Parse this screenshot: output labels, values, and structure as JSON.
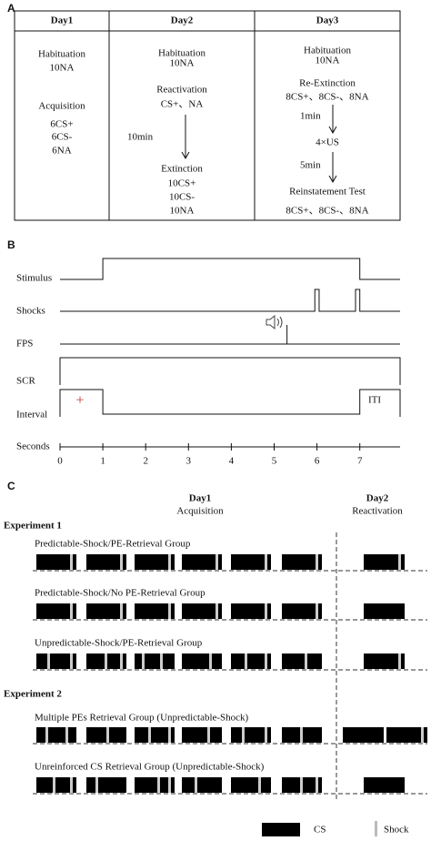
{
  "panel_a": {
    "label": "A",
    "columns": [
      {
        "header": "Day1",
        "lines": [
          "Habituation",
          "10NA",
          "Acquisition",
          "6CS+",
          "6CS-",
          "6NA"
        ]
      },
      {
        "header": "Day2",
        "lines": [
          "Habituation",
          "10NA",
          "Reactivation",
          "CS+、NA",
          "10min",
          "Extinction",
          "10CS+",
          "10CS-",
          "10NA"
        ]
      },
      {
        "header": "Day3",
        "lines": [
          "Habituation",
          "10NA",
          "Re-Extinction",
          "8CS+、8CS-、8NA",
          "1min",
          "4×US",
          "5min",
          "Reinstatement Test",
          "8CS+、8CS-、8NA"
        ]
      }
    ]
  },
  "panel_b": {
    "label": "B",
    "rows": [
      "Stimulus",
      "Shocks",
      "FPS",
      "SCR",
      "Interval",
      "Seconds"
    ],
    "ticks": [
      0,
      1,
      2,
      3,
      4,
      5,
      6,
      7
    ],
    "marker": "+",
    "iti": "ITI"
  },
  "panel_c": {
    "label": "C",
    "days": [
      {
        "day": "Day1",
        "phase": "Acquisition"
      },
      {
        "day": "Day2",
        "phase": "Reactivation"
      }
    ],
    "experiments": [
      {
        "title": "Experiment 1",
        "groups": [
          "Predictable-Shock/PE-Retrieval Group",
          "Predictable-Shock/No PE-Retrieval Group",
          "Unpredictable-Shock/PE-Retrieval Group"
        ]
      },
      {
        "title": "Experiment 2",
        "groups": [
          "Multiple PEs Retrieval Group (Unpredictable-Shock)",
          "Unreinforced CS Retrieval Group (Unpredictable-Shock)"
        ]
      }
    ],
    "legend": {
      "cs": "CS",
      "shock": "Shock"
    }
  }
}
